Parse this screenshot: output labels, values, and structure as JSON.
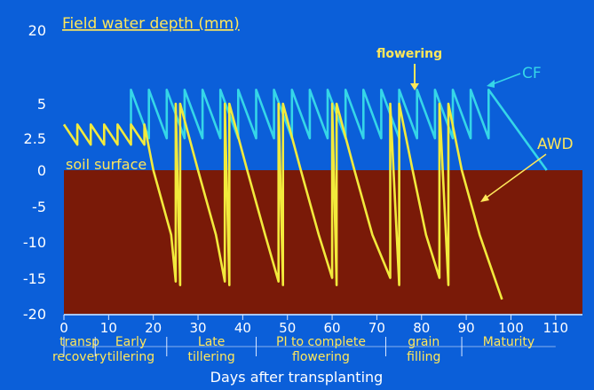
{
  "chart_data": {
    "type": "line",
    "title": "Field water depth (mm)",
    "xlabel": "Days after transplanting",
    "xlim": [
      0,
      116
    ],
    "x_ticks": [
      0,
      10,
      20,
      30,
      40,
      50,
      60,
      70,
      80,
      90,
      100,
      110
    ],
    "y_tick_labels": [
      "20",
      "5",
      "2.5",
      "0",
      "-5",
      "-10",
      "-15",
      "-20"
    ],
    "soil_label": "soil surface",
    "annotations": {
      "flowering": "flowering",
      "flowering_day": 79,
      "cf_label": "CF",
      "awd_label": "AWD"
    },
    "growth_stages": [
      {
        "line1": "transp",
        "line2": "recovery",
        "start": 0,
        "end": 7
      },
      {
        "line1": "Early",
        "line2": "tillering",
        "start": 7,
        "end": 23
      },
      {
        "line1": "Late",
        "line2": "tillering",
        "start": 23,
        "end": 43
      },
      {
        "line1": "PI to complete",
        "line2": "flowering",
        "start": 43,
        "end": 72
      },
      {
        "line1": "grain",
        "line2": "filling",
        "start": 72,
        "end": 89
      },
      {
        "line1": "Maturity",
        "line2": "",
        "start": 89,
        "end": 110
      }
    ],
    "series": [
      {
        "name": "CF",
        "color": "#35d6e8",
        "points": [
          [
            15,
            2.5
          ],
          [
            15,
            7.8
          ],
          [
            19,
            2.5
          ],
          [
            19,
            7.8
          ],
          [
            23,
            2.5
          ],
          [
            23,
            7.8
          ],
          [
            27,
            2.5
          ],
          [
            27,
            7.8
          ],
          [
            31,
            2.5
          ],
          [
            31,
            7.8
          ],
          [
            35,
            2.5
          ],
          [
            35,
            7.8
          ],
          [
            39,
            2.5
          ],
          [
            39,
            7.8
          ],
          [
            43,
            2.5
          ],
          [
            43,
            7.8
          ],
          [
            47,
            2.5
          ],
          [
            47,
            7.8
          ],
          [
            51,
            2.5
          ],
          [
            51,
            7.8
          ],
          [
            55,
            2.5
          ],
          [
            55,
            7.8
          ],
          [
            59,
            2.5
          ],
          [
            59,
            7.8
          ],
          [
            63,
            2.5
          ],
          [
            63,
            7.8
          ],
          [
            67,
            2.5
          ],
          [
            67,
            7.8
          ],
          [
            71,
            2.5
          ],
          [
            71,
            7.8
          ],
          [
            75,
            2.5
          ],
          [
            75,
            7.8
          ],
          [
            79,
            2.5
          ],
          [
            79,
            7.8
          ],
          [
            83,
            2.5
          ],
          [
            83,
            7.8
          ],
          [
            87,
            2.5
          ],
          [
            87,
            7.8
          ],
          [
            91,
            2.5
          ],
          [
            91,
            7.8
          ],
          [
            95,
            2.5
          ],
          [
            95,
            7.8
          ],
          [
            108,
            0
          ]
        ]
      },
      {
        "name": "AWD",
        "color": "#f2ea3c",
        "points": [
          [
            0,
            3.5
          ],
          [
            3,
            2
          ],
          [
            3,
            3.5
          ],
          [
            6,
            2
          ],
          [
            6,
            3.5
          ],
          [
            9,
            2
          ],
          [
            9,
            3.5
          ],
          [
            12,
            2
          ],
          [
            12,
            3.5
          ],
          [
            15,
            2
          ],
          [
            15,
            3.5
          ],
          [
            18,
            2
          ],
          [
            18,
            3.5
          ],
          [
            20,
            0
          ],
          [
            24,
            -9
          ],
          [
            25,
            -15.5
          ],
          [
            25,
            5
          ],
          [
            26,
            -16
          ],
          [
            26,
            5
          ],
          [
            30,
            0
          ],
          [
            34,
            -9
          ],
          [
            36,
            -15.5
          ],
          [
            36,
            5
          ],
          [
            37,
            -16
          ],
          [
            37,
            5
          ],
          [
            41,
            0
          ],
          [
            45,
            -9
          ],
          [
            48,
            -15.5
          ],
          [
            48,
            5
          ],
          [
            49,
            -16
          ],
          [
            49,
            5
          ],
          [
            53,
            0
          ],
          [
            57,
            -9
          ],
          [
            60,
            -15
          ],
          [
            60,
            5
          ],
          [
            61,
            -16
          ],
          [
            61,
            5
          ],
          [
            65,
            0
          ],
          [
            69,
            -9
          ],
          [
            73,
            -15
          ],
          [
            73,
            5
          ],
          [
            75,
            -16
          ],
          [
            75,
            5
          ],
          [
            78,
            0
          ],
          [
            81,
            -9
          ],
          [
            84,
            -15
          ],
          [
            84,
            5
          ],
          [
            86,
            -16
          ],
          [
            86,
            5
          ],
          [
            89,
            0
          ],
          [
            93,
            -9
          ],
          [
            98,
            -18
          ]
        ]
      }
    ]
  }
}
